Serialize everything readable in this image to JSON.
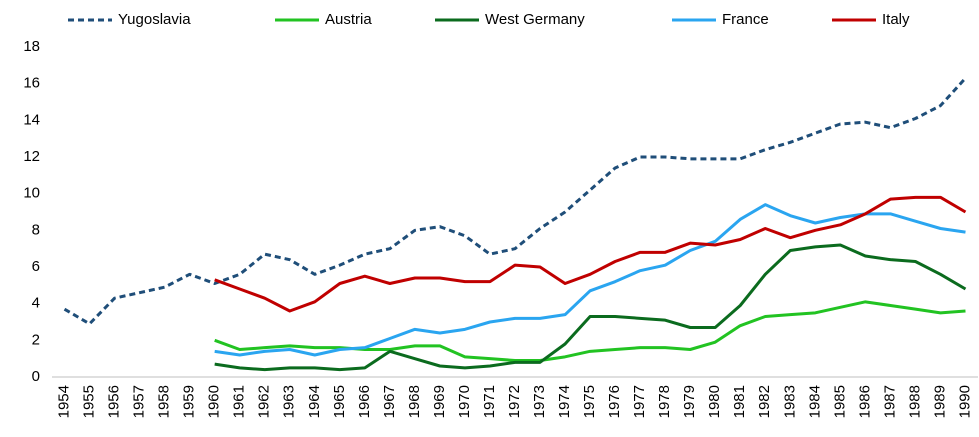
{
  "chart_data": {
    "type": "line",
    "categories": [
      "1954",
      "1955",
      "1956",
      "1957",
      "1958",
      "1959",
      "1960",
      "1961",
      "1962",
      "1963",
      "1964",
      "1965",
      "1966",
      "1967",
      "1968",
      "1969",
      "1970",
      "1971",
      "1972",
      "1973",
      "1974",
      "1975",
      "1976",
      "1977",
      "1978",
      "1979",
      "1980",
      "1981",
      "1982",
      "1983",
      "1984",
      "1985",
      "1986",
      "1987",
      "1988",
      "1989",
      "1990"
    ],
    "series": [
      {
        "name": "Yugoslavia",
        "color": "#1f4e79",
        "dashed": true,
        "values": [
          3.7,
          2.9,
          4.3,
          4.6,
          4.9,
          5.6,
          5.1,
          5.6,
          6.7,
          6.4,
          5.6,
          6.1,
          6.7,
          7.0,
          8.0,
          8.2,
          7.7,
          6.7,
          7.0,
          8.1,
          9.0,
          10.2,
          11.4,
          12.0,
          12.0,
          11.9,
          11.9,
          11.9,
          12.4,
          12.8,
          13.3,
          13.8,
          13.9,
          13.6,
          14.1,
          14.8,
          16.3
        ]
      },
      {
        "name": "Austria",
        "color": "#22c322",
        "dashed": false,
        "values": [
          null,
          null,
          null,
          null,
          null,
          null,
          2.0,
          1.5,
          1.6,
          1.7,
          1.6,
          1.6,
          1.5,
          1.5,
          1.7,
          1.7,
          1.1,
          1.0,
          0.9,
          0.9,
          1.1,
          1.4,
          1.5,
          1.6,
          1.6,
          1.5,
          1.9,
          2.8,
          3.3,
          3.4,
          3.5,
          3.8,
          4.1,
          3.9,
          3.7,
          3.5,
          3.6
        ]
      },
      {
        "name": "West Germany",
        "color": "#0b6b1e",
        "dashed": false,
        "values": [
          null,
          null,
          null,
          null,
          null,
          null,
          0.7,
          0.5,
          0.4,
          0.5,
          0.5,
          0.4,
          0.5,
          1.4,
          1.0,
          0.6,
          0.5,
          0.6,
          0.8,
          0.8,
          1.8,
          3.3,
          3.3,
          3.2,
          3.1,
          2.7,
          2.7,
          3.9,
          5.6,
          6.9,
          7.1,
          7.2,
          6.6,
          6.4,
          6.3,
          5.6,
          4.8
        ]
      },
      {
        "name": "France",
        "color": "#2aa5f0",
        "dashed": false,
        "values": [
          null,
          null,
          null,
          null,
          null,
          null,
          1.4,
          1.2,
          1.4,
          1.5,
          1.2,
          1.5,
          1.6,
          2.1,
          2.6,
          2.4,
          2.6,
          3.0,
          3.2,
          3.2,
          3.4,
          4.7,
          5.2,
          5.8,
          6.1,
          6.9,
          7.4,
          8.6,
          9.4,
          8.8,
          8.4,
          8.7,
          8.9,
          8.9,
          8.5,
          8.1,
          7.9
        ]
      },
      {
        "name": "Italy",
        "color": "#c00000",
        "dashed": false,
        "values": [
          null,
          null,
          null,
          null,
          null,
          null,
          5.3,
          4.8,
          4.3,
          3.6,
          4.1,
          5.1,
          5.5,
          5.1,
          5.4,
          5.4,
          5.2,
          5.2,
          6.1,
          6.0,
          5.1,
          5.6,
          6.3,
          6.8,
          6.8,
          7.3,
          7.2,
          7.5,
          8.1,
          7.6,
          8.0,
          8.3,
          8.9,
          9.7,
          9.8,
          9.8,
          9.0
        ]
      }
    ],
    "ylim": [
      0,
      18
    ],
    "yticks": [
      0,
      2,
      4,
      6,
      8,
      10,
      12,
      14,
      16,
      18
    ],
    "grid": false,
    "legend": "top"
  }
}
